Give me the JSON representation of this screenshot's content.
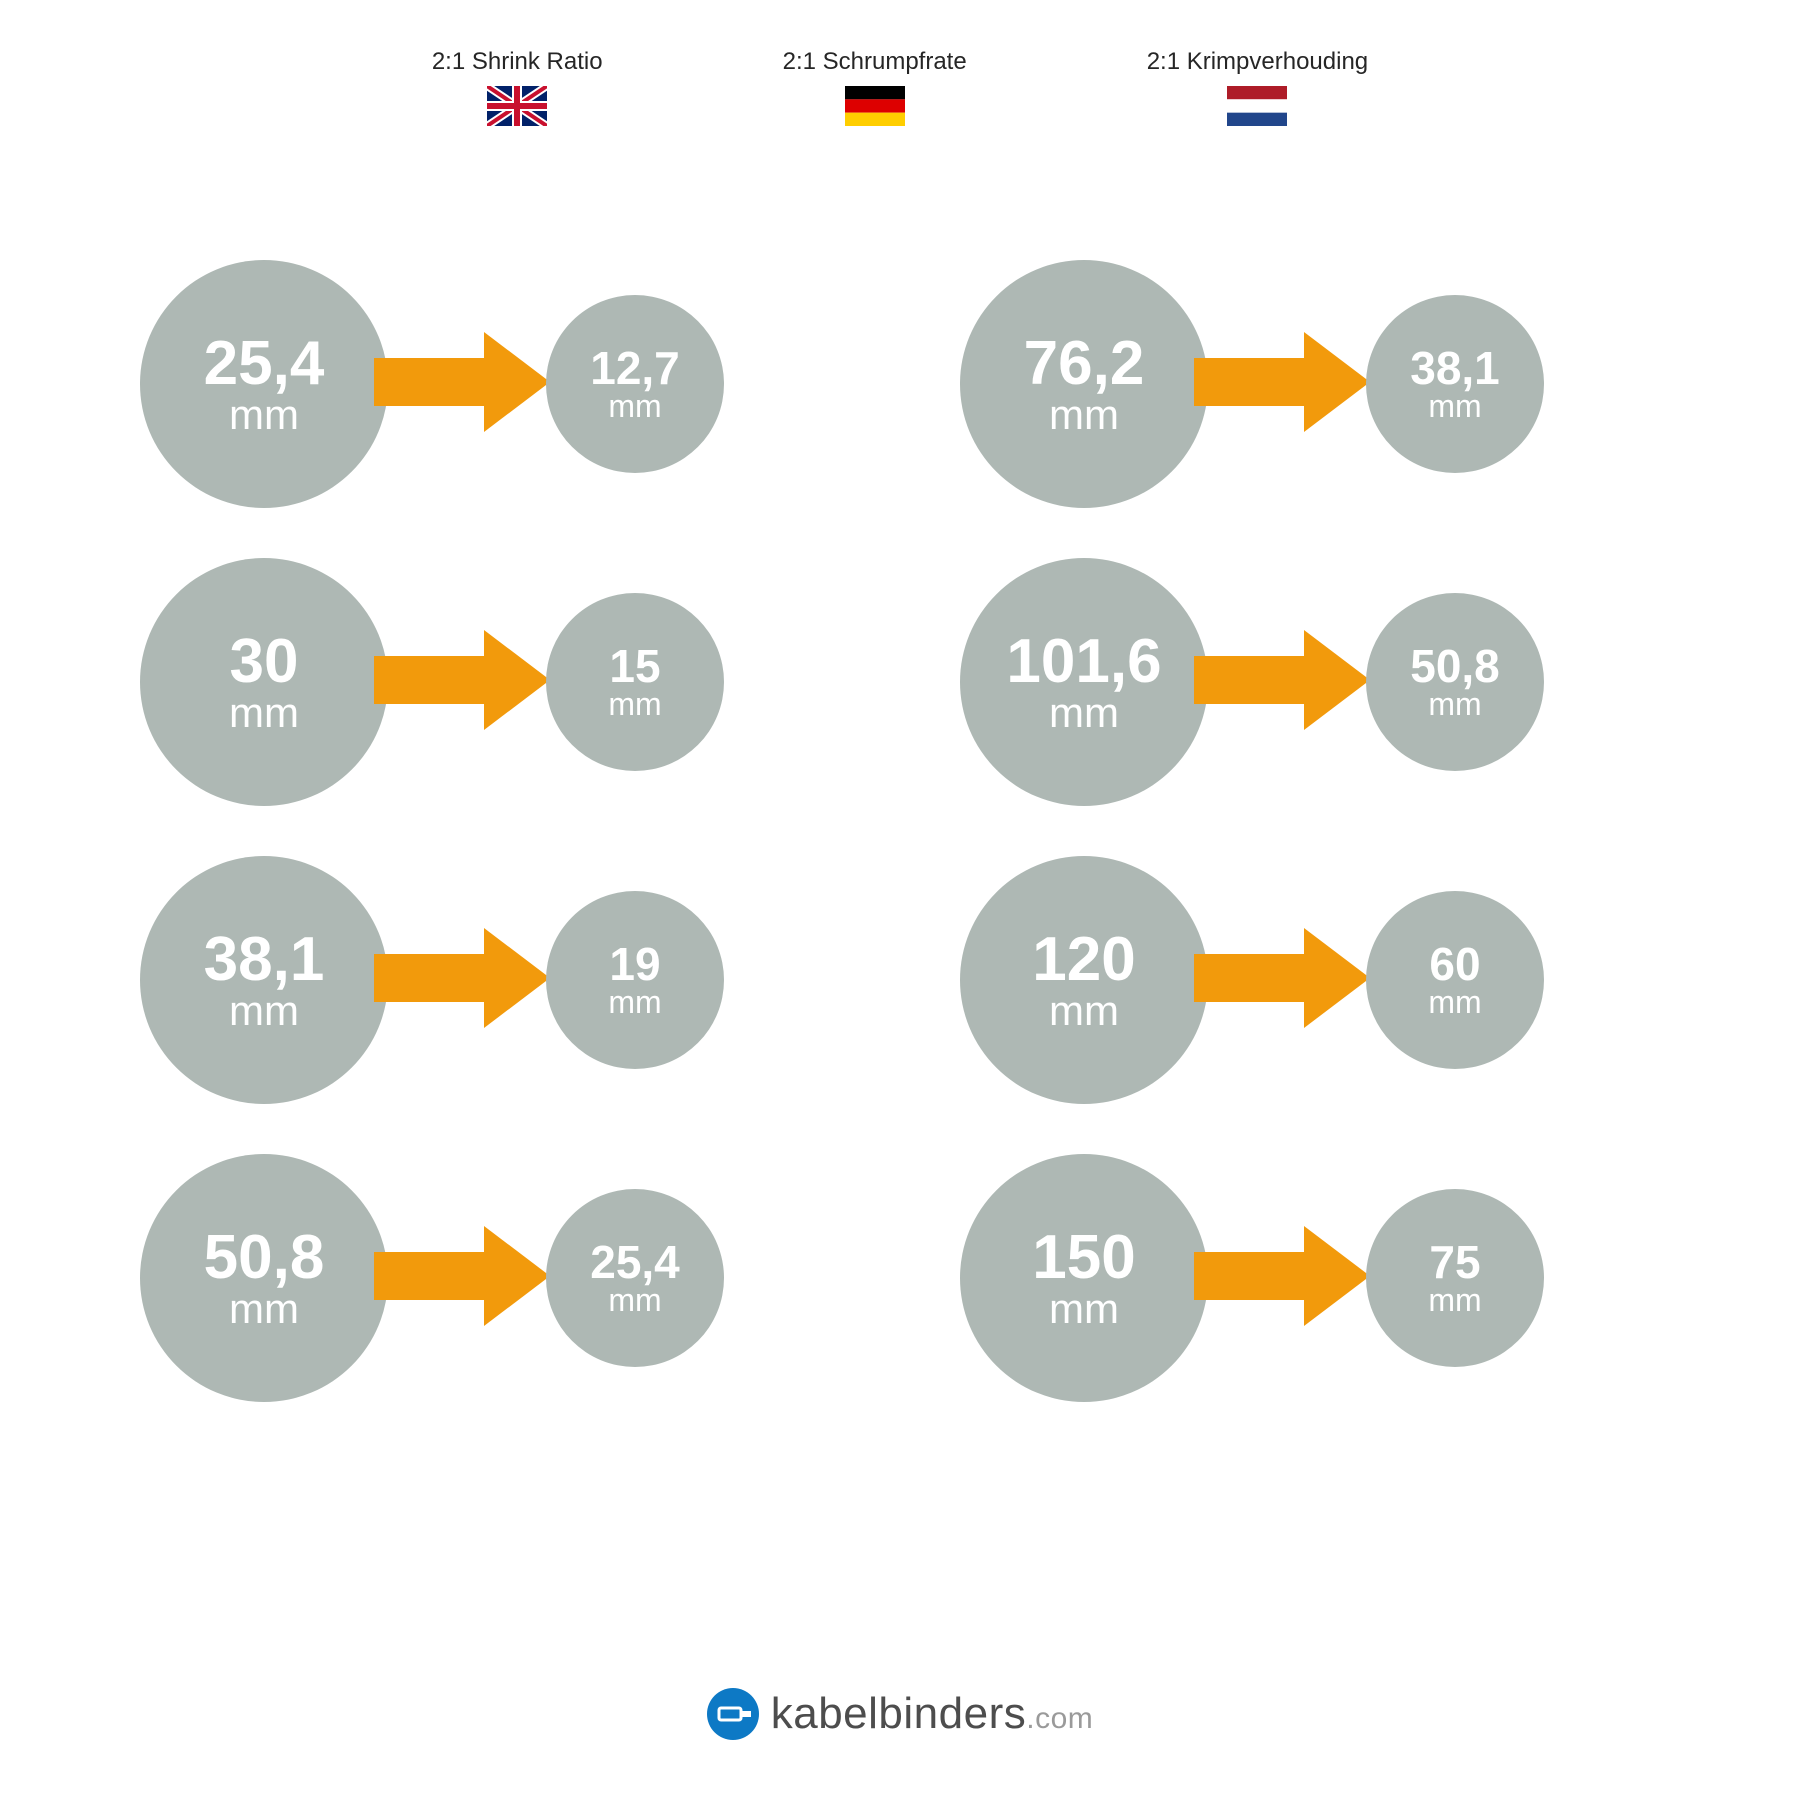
{
  "colors": {
    "circle_bg": "#aeb8b4",
    "arrow": "#f29a0c",
    "text_dark": "#262626",
    "brand_blue": "#0d79c5",
    "brand_text": "#4d4d4d",
    "brand_dotcom": "#9a9a9a"
  },
  "header": {
    "langs": [
      {
        "label": "2:1 Shrink Ratio",
        "flag": "uk"
      },
      {
        "label": "2:1 Schrumpfrate",
        "flag": "de"
      },
      {
        "label": "2:1 Krimpverhouding",
        "flag": "nl"
      }
    ]
  },
  "unit": "mm",
  "pairs": [
    {
      "from": "25,4",
      "to": "12,7"
    },
    {
      "from": "76,2",
      "to": "38,1"
    },
    {
      "from": "30",
      "to": "15"
    },
    {
      "from": "101,6",
      "to": "50,8"
    },
    {
      "from": "38,1",
      "to": "19"
    },
    {
      "from": "120",
      "to": "60"
    },
    {
      "from": "50,8",
      "to": "25,4"
    },
    {
      "from": "150",
      "to": "75"
    }
  ],
  "footer": {
    "brand": "kabelbinders",
    "suffix": ".com"
  }
}
